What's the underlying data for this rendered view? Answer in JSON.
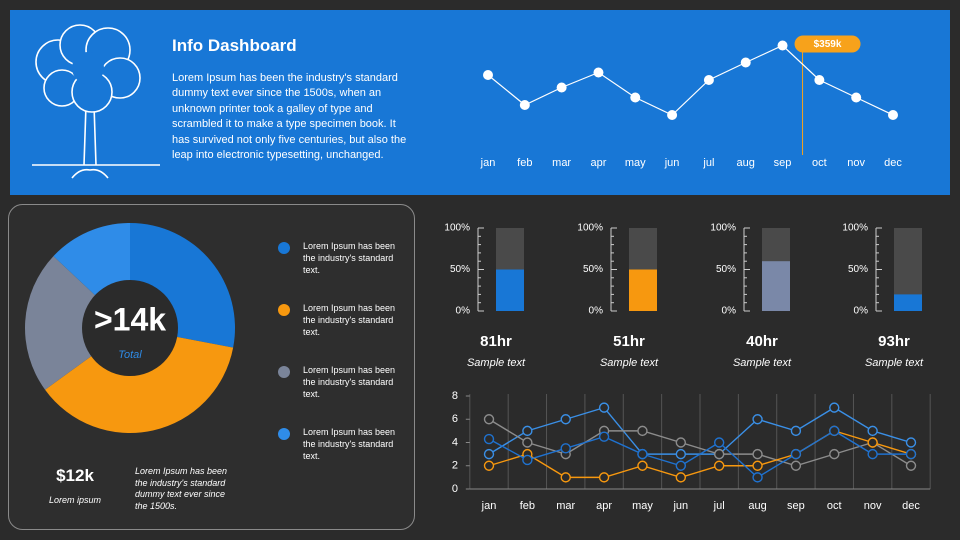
{
  "header": {
    "title": "Info Dashboard",
    "body": "Lorem Ipsum has been the industry's standard dummy text ever since the 1500s, when an unknown printer took a galley of type and scrambled it to make a type specimen book. It has survived not only five centuries, but also the leap into electronic typesetting, unchanged."
  },
  "chart_data": [
    {
      "type": "line",
      "categories": [
        "jan",
        "feb",
        "mar",
        "apr",
        "may",
        "jun",
        "jul",
        "aug",
        "sep",
        "oct",
        "nov",
        "dec"
      ],
      "values": [
        300,
        240,
        275,
        305,
        255,
        220,
        290,
        325,
        359,
        290,
        255,
        220
      ],
      "value_labels": [
        null,
        null,
        null,
        null,
        null,
        null,
        null,
        null,
        "$359k",
        null,
        null,
        null
      ],
      "color": "#ffffff",
      "ylim": [
        200,
        380
      ]
    },
    {
      "type": "pie",
      "center_label": ">14k",
      "center_sublabel": "Total",
      "categories": [
        "Lorem Ipsum has been the industry's standard text.",
        "Lorem Ipsum has been the industry's standard text.",
        "Lorem Ipsum has been the industry's standard text.",
        "Lorem Ipsum has been the industry's standard text."
      ],
      "values": [
        28,
        37,
        22,
        13
      ],
      "colors": [
        "#1877d6",
        "#f7980f",
        "#7a8499",
        "#2f8ce8"
      ]
    },
    {
      "type": "progress",
      "value": 50,
      "color": "#1877d6",
      "label": "81hr",
      "caption": "Sample text",
      "ylim": [
        0,
        100
      ],
      "yticks": [
        {
          "value": 0,
          "label": "0%"
        },
        {
          "value": 50,
          "label": "50%"
        },
        {
          "value": 100,
          "label": "100%"
        }
      ]
    },
    {
      "type": "progress",
      "value": 50,
      "color": "#f7980f",
      "label": "51hr",
      "caption": "Sample text",
      "ylim": [
        0,
        100
      ],
      "yticks": [
        {
          "value": 0,
          "label": "0%"
        },
        {
          "value": 50,
          "label": "50%"
        },
        {
          "value": 100,
          "label": "100%"
        }
      ]
    },
    {
      "type": "progress",
      "value": 60,
      "color": "#7a88a8",
      "label": "40hr",
      "caption": "Sample text",
      "ylim": [
        0,
        100
      ],
      "yticks": [
        {
          "value": 0,
          "label": "0%"
        },
        {
          "value": 50,
          "label": "50%"
        },
        {
          "value": 100,
          "label": "100%"
        }
      ]
    },
    {
      "type": "progress",
      "value": 20,
      "color": "#1877d6",
      "label": "93hr",
      "caption": "Sample text",
      "ylim": [
        0,
        100
      ],
      "yticks": [
        {
          "value": 0,
          "label": "0%"
        },
        {
          "value": 50,
          "label": "50%"
        },
        {
          "value": 100,
          "label": "100%"
        }
      ]
    },
    {
      "type": "line",
      "categories": [
        "jan",
        "feb",
        "mar",
        "apr",
        "may",
        "jun",
        "jul",
        "aug",
        "sep",
        "oct",
        "nov",
        "dec"
      ],
      "ylim": [
        0,
        8
      ],
      "yticks": [
        0,
        2,
        4,
        6,
        8
      ],
      "series": [
        {
          "color": "#3a8fe6",
          "values": [
            3,
            5,
            6,
            7,
            3,
            3,
            3,
            6,
            5,
            7,
            5,
            4
          ]
        },
        {
          "color": "#8c8c8c",
          "values": [
            6,
            4,
            3,
            5,
            5,
            4,
            3,
            3,
            2,
            3,
            4,
            2
          ]
        },
        {
          "color": "#f7980f",
          "values": [
            2,
            3,
            1,
            1,
            2,
            1,
            2,
            2,
            3,
            5,
            4,
            3
          ]
        },
        {
          "color": "#1f72d0",
          "values": [
            4.3,
            2.5,
            3.5,
            4.5,
            3,
            2,
            4,
            1,
            3,
            5,
            3,
            3
          ]
        }
      ]
    }
  ],
  "summary": {
    "value": "$12k",
    "label": "Lorem ipsum",
    "text": "Lorem Ipsum has been the industry's standard dummy text ever since the 1500s."
  }
}
